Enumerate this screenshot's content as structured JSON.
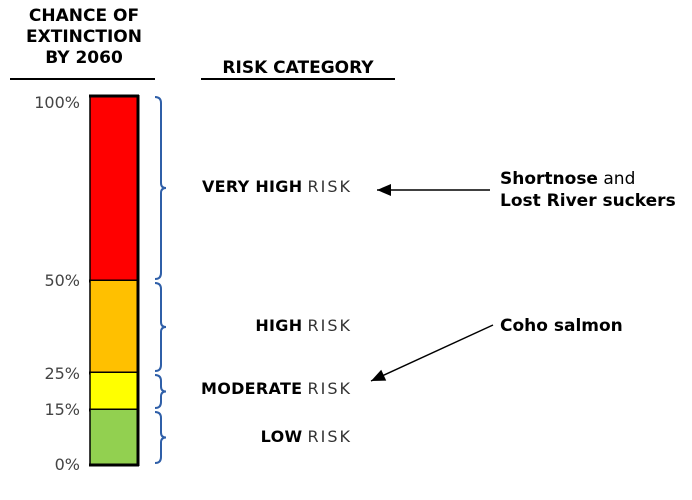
{
  "headers": {
    "chance": [
      "CHANCE OF",
      "EXTINCTION",
      "BY 2060"
    ],
    "risk_category": "RISK CATEGORY"
  },
  "scale": {
    "levels": [
      {
        "label": "100%",
        "value": 100
      },
      {
        "label": "50%",
        "value": 50
      },
      {
        "label": "25%",
        "value": 25
      },
      {
        "label": "15%",
        "value": 15
      },
      {
        "label": "0%",
        "value": 0
      }
    ]
  },
  "categories": [
    {
      "strong": "VERY HIGH",
      "suffix": "RISK",
      "from": 50,
      "to": 100,
      "color": "#ff0000"
    },
    {
      "strong": "HIGH",
      "suffix": "RISK",
      "from": 25,
      "to": 50,
      "color": "#ffc000"
    },
    {
      "strong": "MODERATE",
      "suffix": "RISK",
      "from": 15,
      "to": 25,
      "color": "#ffff00"
    },
    {
      "strong": "LOW",
      "suffix": "RISK",
      "from": 0,
      "to": 15,
      "color": "#92d050"
    }
  ],
  "brace_color": "#2f5fa8",
  "annotations": [
    {
      "bold1": "Shortnose",
      "plain": " and",
      "bold2": "Lost River suckers",
      "points_to": "VERY HIGH"
    },
    {
      "bold1": "Coho salmon",
      "points_to": "MODERATE"
    }
  ]
}
